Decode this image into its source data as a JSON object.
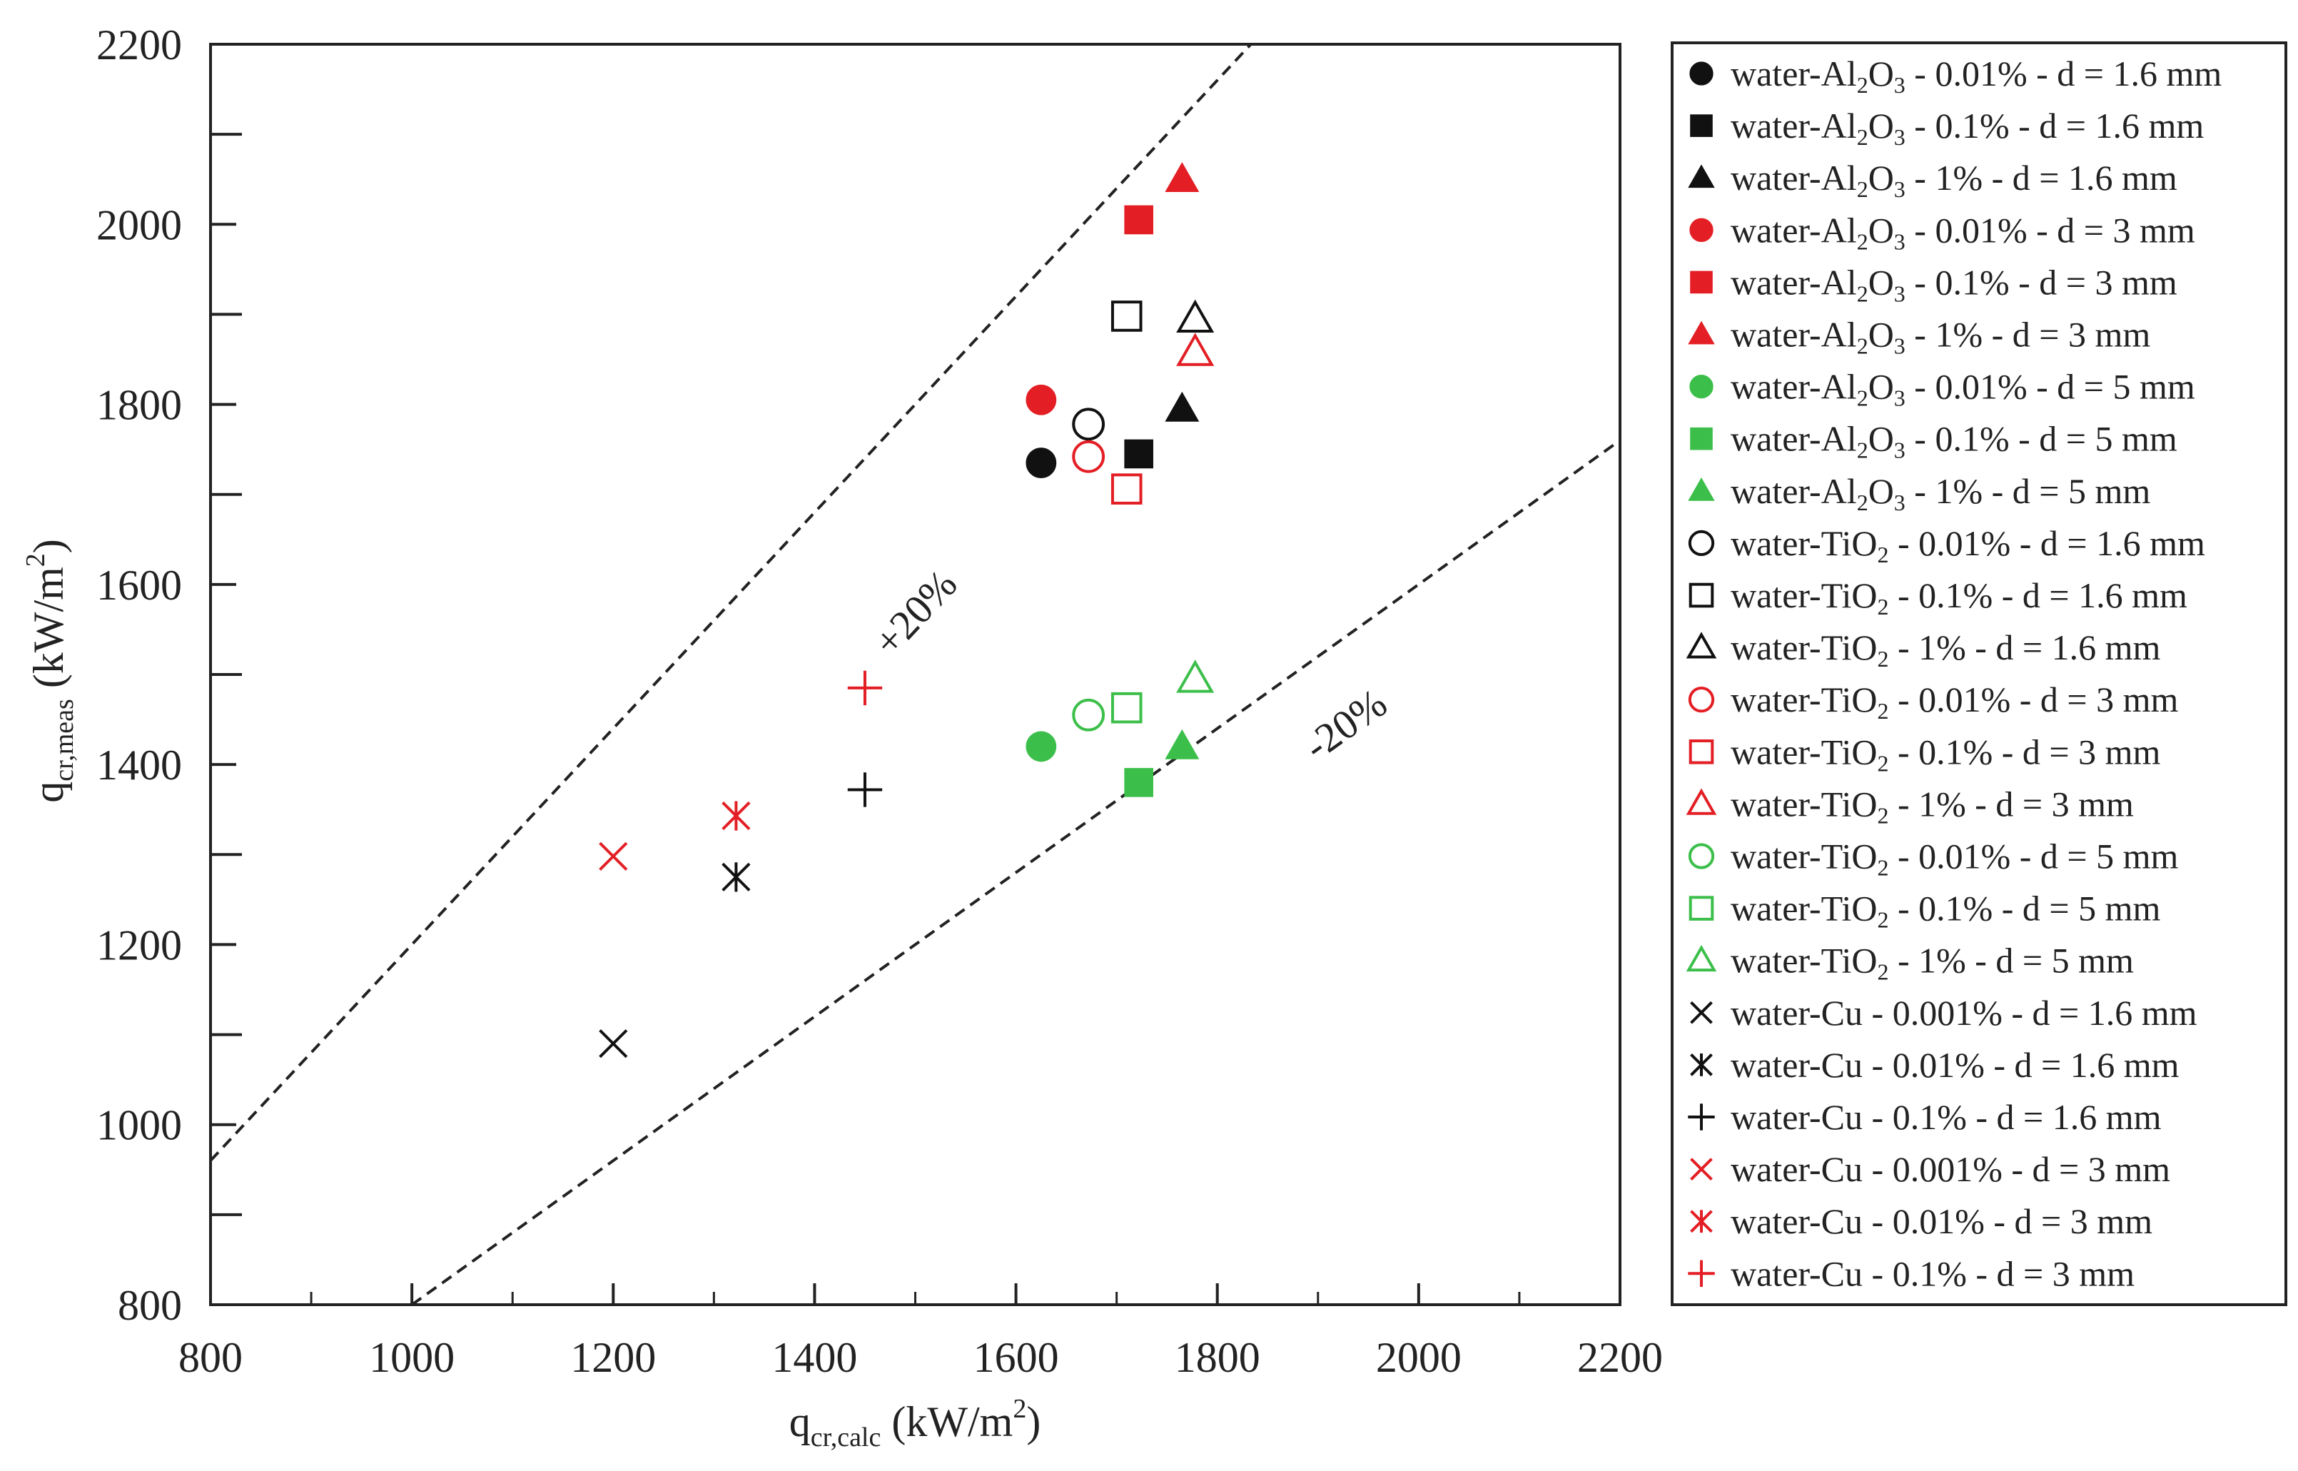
{
  "colors": {
    "black": "#111111",
    "red": "#e31e24",
    "green": "#3cbf4a"
  },
  "chart_data": {
    "type": "scatter",
    "xlabel": {
      "main": "q",
      "sub": "cr,calc",
      "unit_pre": " (kW/m",
      "unit_sup": "2",
      "unit_post": ")"
    },
    "ylabel": {
      "main": "q",
      "sub": "cr,meas",
      "unit_pre": " (kW/m",
      "unit_sup": "2",
      "unit_post": ")"
    },
    "xlim": [
      800,
      2200
    ],
    "ylim": [
      800,
      2200
    ],
    "xticks": [
      800,
      1000,
      1200,
      1400,
      1600,
      1800,
      2000,
      2200
    ],
    "yticks": [
      800,
      1000,
      1200,
      1400,
      1600,
      1800,
      2000,
      2200
    ],
    "grid": false,
    "legend_position": "outside-right",
    "reference_lines": [
      {
        "label": "+20%",
        "slope": 1.2,
        "style": "dashed"
      },
      {
        "label": "-20%",
        "slope": 0.8,
        "style": "dashed"
      }
    ],
    "series": [
      {
        "name": "water-Al₂O₃ - 0.01% - d = 1.6 mm",
        "fluid": "water-Al",
        "fsub": "2",
        "fmid": "O",
        "fsub2": "3",
        "rest": " - 0.01% - d = 1.6 mm",
        "marker": "circle",
        "filled": true,
        "color": "black",
        "x": [
          1625
        ],
        "y": [
          1735
        ]
      },
      {
        "name": "water-Al₂O₃ - 0.1% - d = 1.6 mm",
        "fluid": "water-Al",
        "fsub": "2",
        "fmid": "O",
        "fsub2": "3",
        "rest": " - 0.1% - d = 1.6 mm",
        "marker": "square",
        "filled": true,
        "color": "black",
        "x": [
          1722
        ],
        "y": [
          1745
        ]
      },
      {
        "name": "water-Al₂O₃ - 1% - d = 1.6 mm",
        "fluid": "water-Al",
        "fsub": "2",
        "fmid": "O",
        "fsub2": "3",
        "rest": " - 1% - d = 1.6 mm",
        "marker": "triangle",
        "filled": true,
        "color": "black",
        "x": [
          1765
        ],
        "y": [
          1795
        ]
      },
      {
        "name": "water-Al₂O₃ - 0.01% - d = 3 mm",
        "fluid": "water-Al",
        "fsub": "2",
        "fmid": "O",
        "fsub2": "3",
        "rest": " - 0.01% - d = 3 mm",
        "marker": "circle",
        "filled": true,
        "color": "red",
        "x": [
          1625
        ],
        "y": [
          1805
        ]
      },
      {
        "name": "water-Al₂O₃ - 0.1% - d = 3 mm",
        "fluid": "water-Al",
        "fsub": "2",
        "fmid": "O",
        "fsub2": "3",
        "rest": " - 0.1% - d = 3 mm",
        "marker": "square",
        "filled": true,
        "color": "red",
        "x": [
          1722
        ],
        "y": [
          2005
        ]
      },
      {
        "name": "water-Al₂O₃ - 1% - d = 3 mm",
        "fluid": "water-Al",
        "fsub": "2",
        "fmid": "O",
        "fsub2": "3",
        "rest": " - 1% - d = 3 mm",
        "marker": "triangle",
        "filled": true,
        "color": "red",
        "x": [
          1765
        ],
        "y": [
          2050
        ]
      },
      {
        "name": "water-Al₂O₃ - 0.01% - d = 5 mm",
        "fluid": "water-Al",
        "fsub": "2",
        "fmid": "O",
        "fsub2": "3",
        "rest": " - 0.01% - d = 5 mm",
        "marker": "circle",
        "filled": true,
        "color": "green",
        "x": [
          1625
        ],
        "y": [
          1420
        ]
      },
      {
        "name": "water-Al₂O₃ - 0.1% - d = 5 mm",
        "fluid": "water-Al",
        "fsub": "2",
        "fmid": "O",
        "fsub2": "3",
        "rest": " - 0.1% - d = 5 mm",
        "marker": "square",
        "filled": true,
        "color": "green",
        "x": [
          1722
        ],
        "y": [
          1380
        ]
      },
      {
        "name": "water-Al₂O₃ - 1% - d = 5 mm",
        "fluid": "water-Al",
        "fsub": "2",
        "fmid": "O",
        "fsub2": "3",
        "rest": " - 1% - d = 5 mm",
        "marker": "triangle",
        "filled": true,
        "color": "green",
        "x": [
          1765
        ],
        "y": [
          1420
        ]
      },
      {
        "name": "water-TiO₂ - 0.01% - d = 1.6 mm",
        "fluid": "water-TiO",
        "fsub": "2",
        "fmid": "",
        "fsub2": "",
        "rest": " - 0.01% - d = 1.6 mm",
        "marker": "circle",
        "filled": false,
        "color": "black",
        "x": [
          1672
        ],
        "y": [
          1778
        ]
      },
      {
        "name": "water-TiO₂ - 0.1% - d = 1.6 mm",
        "fluid": "water-TiO",
        "fsub": "2",
        "fmid": "",
        "fsub2": "",
        "rest": " - 0.1% - d = 1.6 mm",
        "marker": "square",
        "filled": false,
        "color": "black",
        "x": [
          1710
        ],
        "y": [
          1898
        ]
      },
      {
        "name": "water-TiO₂ - 1% - d = 1.6 mm",
        "fluid": "water-TiO",
        "fsub": "2",
        "fmid": "",
        "fsub2": "",
        "rest": " - 1% - d = 1.6 mm",
        "marker": "triangle",
        "filled": false,
        "color": "black",
        "x": [
          1778
        ],
        "y": [
          1895
        ]
      },
      {
        "name": "water-TiO₂ - 0.01% - d = 3 mm",
        "fluid": "water-TiO",
        "fsub": "2",
        "fmid": "",
        "fsub2": "",
        "rest": " - 0.01% - d = 3 mm",
        "marker": "circle",
        "filled": false,
        "color": "red",
        "x": [
          1672
        ],
        "y": [
          1742
        ]
      },
      {
        "name": "water-TiO₂ - 0.1% - d = 3 mm",
        "fluid": "water-TiO",
        "fsub": "2",
        "fmid": "",
        "fsub2": "",
        "rest": " - 0.1% - d = 3 mm",
        "marker": "square",
        "filled": false,
        "color": "red",
        "x": [
          1710
        ],
        "y": [
          1706
        ]
      },
      {
        "name": "water-TiO₂ - 1% - d = 3 mm",
        "fluid": "water-TiO",
        "fsub": "2",
        "fmid": "",
        "fsub2": "",
        "rest": " - 1% - d = 3 mm",
        "marker": "triangle",
        "filled": false,
        "color": "red",
        "x": [
          1778
        ],
        "y": [
          1858
        ]
      },
      {
        "name": "water-TiO₂ - 0.01% - d = 5 mm",
        "fluid": "water-TiO",
        "fsub": "2",
        "fmid": "",
        "fsub2": "",
        "rest": " - 0.01% - d = 5 mm",
        "marker": "circle",
        "filled": false,
        "color": "green",
        "x": [
          1672
        ],
        "y": [
          1455
        ]
      },
      {
        "name": "water-TiO₂ - 0.1% - d = 5 mm",
        "fluid": "water-TiO",
        "fsub": "2",
        "fmid": "",
        "fsub2": "",
        "rest": " - 0.1% - d = 5 mm",
        "marker": "square",
        "filled": false,
        "color": "green",
        "x": [
          1710
        ],
        "y": [
          1463
        ]
      },
      {
        "name": "water-TiO₂ - 1% - d = 5 mm",
        "fluid": "water-TiO",
        "fsub": "2",
        "fmid": "",
        "fsub2": "",
        "rest": " - 1% - d = 5 mm",
        "marker": "triangle",
        "filled": false,
        "color": "green",
        "x": [
          1778
        ],
        "y": [
          1495
        ]
      },
      {
        "name": "water-Cu - 0.001% - d = 1.6 mm",
        "fluid": "water-Cu",
        "fsub": "",
        "fmid": "",
        "fsub2": "",
        "rest": " - 0.001% - d = 1.6 mm",
        "marker": "x",
        "filled": false,
        "color": "black",
        "x": [
          1200
        ],
        "y": [
          1090
        ]
      },
      {
        "name": "water-Cu - 0.01% - d = 1.6 mm",
        "fluid": "water-Cu",
        "fsub": "",
        "fmid": "",
        "fsub2": "",
        "rest": " - 0.01% - d = 1.6 mm",
        "marker": "star",
        "filled": false,
        "color": "black",
        "x": [
          1322
        ],
        "y": [
          1275
        ]
      },
      {
        "name": "water-Cu - 0.1% - d = 1.6 mm",
        "fluid": "water-Cu",
        "fsub": "",
        "fmid": "",
        "fsub2": "",
        "rest": " - 0.1% - d = 1.6 mm",
        "marker": "plus",
        "filled": false,
        "color": "black",
        "x": [
          1450
        ],
        "y": [
          1372
        ]
      },
      {
        "name": "water-Cu - 0.001% - d = 3 mm",
        "fluid": "water-Cu",
        "fsub": "",
        "fmid": "",
        "fsub2": "",
        "rest": " - 0.001% - d = 3 mm",
        "marker": "x",
        "filled": false,
        "color": "red",
        "x": [
          1200
        ],
        "y": [
          1298
        ]
      },
      {
        "name": "water-Cu - 0.01% - d = 3 mm",
        "fluid": "water-Cu",
        "fsub": "",
        "fmid": "",
        "fsub2": "",
        "rest": " - 0.01% - d = 3 mm",
        "marker": "star",
        "filled": false,
        "color": "red",
        "x": [
          1322
        ],
        "y": [
          1343
        ]
      },
      {
        "name": "water-Cu - 0.1% - d = 3 mm",
        "fluid": "water-Cu",
        "fsub": "",
        "fmid": "",
        "fsub2": "",
        "rest": " - 0.1% - d = 3 mm",
        "marker": "plus",
        "filled": false,
        "color": "red",
        "x": [
          1450
        ],
        "y": [
          1485
        ]
      }
    ]
  }
}
